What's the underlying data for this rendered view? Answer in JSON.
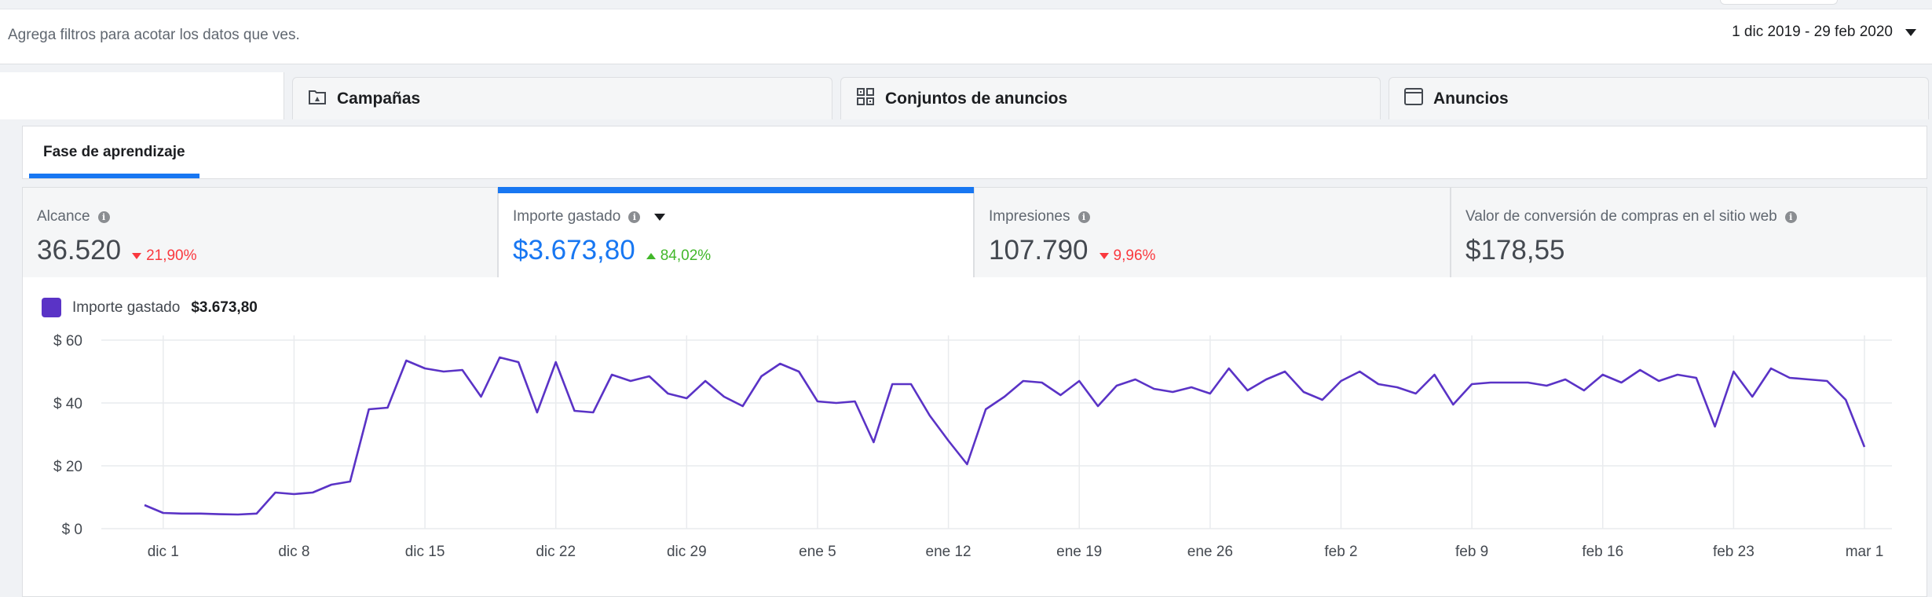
{
  "filter_bar": {
    "hint": "Agrega filtros para acotar los datos que ves.",
    "date_range": "1 dic 2019 - 29 feb 2020"
  },
  "tabs": [
    {
      "label": "Campañas",
      "icon": "campaign-folder-icon"
    },
    {
      "label": "Conjuntos de anuncios",
      "icon": "ad-sets-grid-icon"
    },
    {
      "label": "Anuncios",
      "icon": "ad-window-icon"
    }
  ],
  "subtab": {
    "label": "Fase de aprendizaje",
    "active": true
  },
  "metrics": [
    {
      "label": "Alcance",
      "value": "36.520",
      "delta": "21,90%",
      "direction": "down"
    },
    {
      "label": "Importe gastado",
      "value": "$3.673,80",
      "delta": "84,02%",
      "direction": "up",
      "selected": true
    },
    {
      "label": "Impresiones",
      "value": "107.790",
      "delta": "9,96%",
      "direction": "down"
    },
    {
      "label": "Valor de conversión de compras en el sitio web",
      "value": "$178,55"
    }
  ],
  "colors": {
    "accent": "#1877f2",
    "series": "#5a33c6",
    "negative": "#fa383e",
    "positive": "#42b72a"
  },
  "legend": {
    "label": "Importe gastado",
    "value": "$3.673,80"
  },
  "chart_data": {
    "type": "line",
    "ylim": [
      0,
      60
    ],
    "y_ticks": [
      "$ 0",
      "$ 20",
      "$ 40",
      "$ 60"
    ],
    "y_tick_values": [
      0,
      20,
      40,
      60
    ],
    "x_tick_labels": [
      "dic 1",
      "dic 8",
      "dic 15",
      "dic 22",
      "dic 29",
      "ene 5",
      "ene 12",
      "ene 19",
      "ene 26",
      "feb 2",
      "feb 9",
      "feb 16",
      "feb 23",
      "mar 1"
    ],
    "grid": true,
    "series": [
      {
        "name": "Importe gastado",
        "x": [
          "2019-11-30",
          "2019-12-01",
          "2019-12-02",
          "2019-12-03",
          "2019-12-04",
          "2019-12-05",
          "2019-12-06",
          "2019-12-07",
          "2019-12-08",
          "2019-12-09",
          "2019-12-10",
          "2019-12-11",
          "2019-12-12",
          "2019-12-13",
          "2019-12-14",
          "2019-12-15",
          "2019-12-16",
          "2019-12-17",
          "2019-12-18",
          "2019-12-19",
          "2019-12-20",
          "2019-12-21",
          "2019-12-22",
          "2019-12-23",
          "2019-12-24",
          "2019-12-25",
          "2019-12-26",
          "2019-12-27",
          "2019-12-28",
          "2019-12-29",
          "2019-12-30",
          "2019-12-31",
          "2020-01-01",
          "2020-01-02",
          "2020-01-03",
          "2020-01-04",
          "2020-01-05",
          "2020-01-06",
          "2020-01-07",
          "2020-01-08",
          "2020-01-09",
          "2020-01-10",
          "2020-01-11",
          "2020-01-12",
          "2020-01-13",
          "2020-01-14",
          "2020-01-15",
          "2020-01-16",
          "2020-01-17",
          "2020-01-18",
          "2020-01-19",
          "2020-01-20",
          "2020-01-21",
          "2020-01-22",
          "2020-01-23",
          "2020-01-24",
          "2020-01-25",
          "2020-01-26",
          "2020-01-27",
          "2020-01-28",
          "2020-01-29",
          "2020-01-30",
          "2020-01-31",
          "2020-02-01",
          "2020-02-02",
          "2020-02-03",
          "2020-02-04",
          "2020-02-05",
          "2020-02-06",
          "2020-02-07",
          "2020-02-08",
          "2020-02-09",
          "2020-02-10",
          "2020-02-11",
          "2020-02-12",
          "2020-02-13",
          "2020-02-14",
          "2020-02-15",
          "2020-02-16",
          "2020-02-17",
          "2020-02-18",
          "2020-02-19",
          "2020-02-20",
          "2020-02-21",
          "2020-02-22",
          "2020-02-23",
          "2020-02-24",
          "2020-02-25",
          "2020-02-26",
          "2020-02-27",
          "2020-02-28",
          "2020-02-29",
          "2020-03-01"
        ],
        "values": [
          7.5,
          5,
          4.8,
          4.8,
          4.6,
          4.5,
          4.8,
          11.5,
          11,
          11.5,
          14,
          15,
          38,
          38.5,
          53.5,
          51,
          50,
          50.5,
          42,
          54.5,
          53,
          37,
          53,
          37.5,
          37,
          49,
          47,
          48.5,
          43,
          41.5,
          47,
          42,
          39,
          48.5,
          52.5,
          50,
          40.5,
          40,
          40.5,
          27.5,
          46,
          46,
          36,
          28,
          20.5,
          38,
          42,
          47,
          46.5,
          42.5,
          47,
          39,
          45.5,
          47.5,
          44.5,
          43.5,
          45,
          43,
          51,
          44,
          47.5,
          50,
          43.5,
          41,
          47,
          50,
          46,
          45,
          43,
          49,
          39.5,
          46,
          46.5,
          46.5,
          46.5,
          45.5,
          47.5,
          44,
          49,
          46.5,
          50.5,
          47,
          49,
          48,
          32.5,
          50,
          42,
          51,
          48,
          47.5,
          47,
          41,
          26
        ]
      }
    ]
  }
}
